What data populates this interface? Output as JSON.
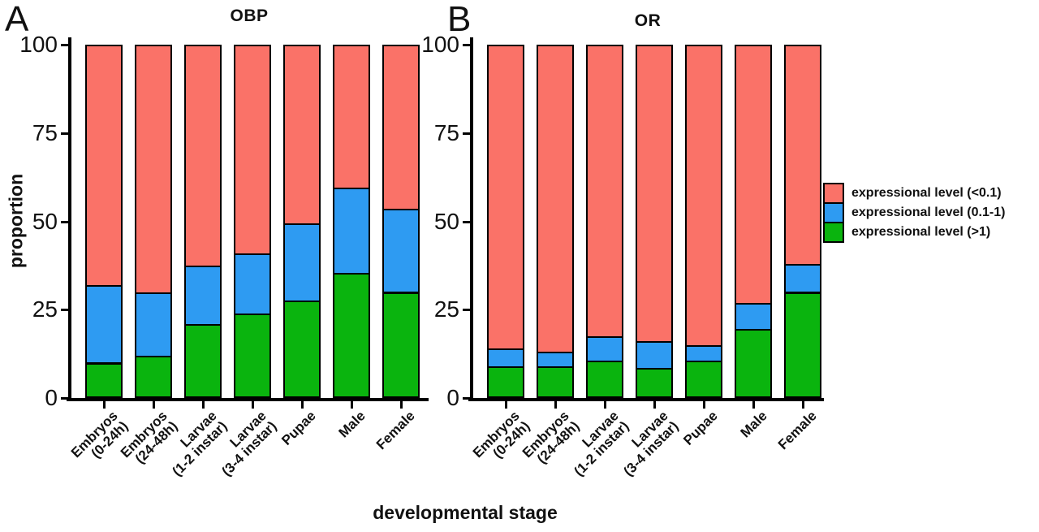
{
  "labels": {
    "xlabel": "developmental stage",
    "ylabel": "proportion"
  },
  "colors": {
    "red": "#FA7268",
    "blue": "#2E9BF2",
    "green": "#0AB40E",
    "axis": "#000000"
  },
  "legend": {
    "items": [
      {
        "label": "expressional level (<0.1)",
        "color_key": "red"
      },
      {
        "label": "expressional level (0.1-1)",
        "color_key": "blue"
      },
      {
        "label": "expressional level (>1)",
        "color_key": "green"
      }
    ]
  },
  "chart_data": [
    {
      "type": "bar",
      "stacked": true,
      "panel_label": "A",
      "title": "OBP",
      "categories": [
        [
          "Embryos",
          "(0-24h)"
        ],
        [
          "Embryos",
          "(24-48h)"
        ],
        [
          "Larvae",
          "(1-2 instar)"
        ],
        [
          "Larvae",
          "(3-4 instar)"
        ],
        [
          "Pupae"
        ],
        [
          "Male"
        ],
        [
          "Female"
        ]
      ],
      "series": [
        {
          "name": "expressional level (>1)",
          "color_key": "green",
          "values": [
            10,
            12,
            21,
            24,
            27.5,
            35.5,
            30
          ]
        },
        {
          "name": "expressional level (0.1-1)",
          "color_key": "blue",
          "values": [
            22,
            18,
            16.5,
            17,
            22,
            24,
            23.5
          ]
        },
        {
          "name": "expressional level (<0.1)",
          "color_key": "red",
          "values": [
            68,
            70,
            62.5,
            59,
            50.5,
            40.5,
            46.5
          ]
        }
      ],
      "ylim": [
        0,
        100
      ],
      "yticks": [
        0,
        25,
        50,
        75,
        100
      ],
      "grid": false
    },
    {
      "type": "bar",
      "stacked": true,
      "panel_label": "B",
      "title": "OR",
      "categories": [
        [
          "Embryos",
          "(0-24h)"
        ],
        [
          "Embryos",
          "(24-48h)"
        ],
        [
          "Larvae",
          "(1-2 instar)"
        ],
        [
          "Larvae",
          "(3-4 instar)"
        ],
        [
          "Pupae"
        ],
        [
          "Male"
        ],
        [
          "Female"
        ]
      ],
      "series": [
        {
          "name": "expressional level (>1)",
          "color_key": "green",
          "values": [
            9,
            9,
            10.5,
            8.5,
            10.5,
            19.5,
            30
          ]
        },
        {
          "name": "expressional level (0.1-1)",
          "color_key": "blue",
          "values": [
            5,
            4,
            7,
            7.5,
            4.5,
            7.5,
            8
          ]
        },
        {
          "name": "expressional level (<0.1)",
          "color_key": "red",
          "values": [
            86,
            87,
            82.5,
            84,
            85,
            73,
            62
          ]
        }
      ],
      "ylim": [
        0,
        100
      ],
      "yticks": [
        0,
        25,
        50,
        75,
        100
      ],
      "grid": false
    }
  ]
}
